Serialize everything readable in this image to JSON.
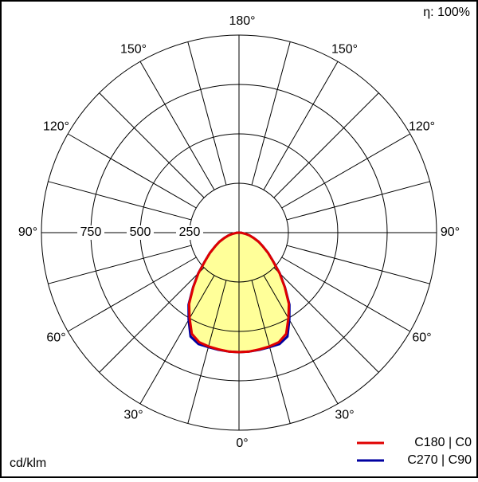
{
  "chart_data": {
    "type": "polar",
    "efficiency": "η: 100%",
    "unit_label": "cd/klm",
    "x": [
      0,
      5,
      10,
      15,
      20,
      25,
      30,
      35,
      40,
      45,
      50,
      55,
      60,
      65,
      70,
      75,
      80,
      85,
      90
    ],
    "series": [
      {
        "name": "C270 | C90",
        "color": "#0000a0",
        "values": [
          605,
          604,
          602,
          600,
          600,
          580,
          510,
          445,
          362,
          292,
          226,
          180,
          140,
          110,
          80,
          55,
          32,
          14,
          0
        ]
      },
      {
        "name": "C180 | C0",
        "color": "#e00000",
        "values": [
          605,
          604,
          600,
          596,
          590,
          565,
          500,
          440,
          360,
          290,
          225,
          180,
          140,
          110,
          80,
          55,
          32,
          14,
          0
        ]
      }
    ],
    "fill_color": "#ffff99",
    "rlim": [
      0,
      1000
    ],
    "rticks": [
      250,
      500,
      750
    ],
    "angleticks": [
      {
        "value": 0,
        "label": "0°"
      },
      {
        "value": 30,
        "label": "30°"
      },
      {
        "value": 60,
        "label": "60°"
      },
      {
        "value": 90,
        "label": "90°"
      },
      {
        "value": 120,
        "label": "120°"
      },
      {
        "value": 150,
        "label": "150°"
      },
      {
        "value": 180,
        "label": "180°"
      }
    ],
    "grid": true,
    "legend": "lower right"
  }
}
